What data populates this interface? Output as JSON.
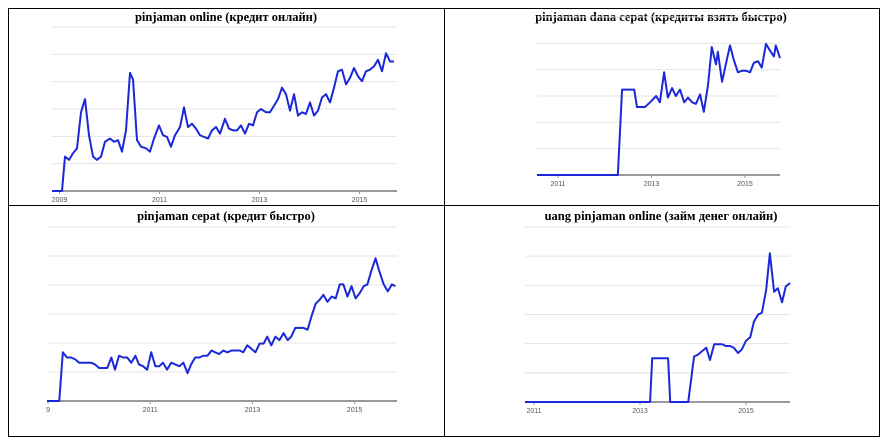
{
  "chart_data": [
    {
      "type": "line",
      "title": "pinjaman online (кредит онлайн)",
      "color": "#1a28d8",
      "grid": true,
      "xlim": [
        2008.85,
        2015.75
      ],
      "xticks": [
        2009,
        2011,
        2013,
        2015
      ],
      "ylim": [
        0,
        100
      ],
      "x": [
        2008.85,
        2009.05,
        2009.11,
        2009.19,
        2009.27,
        2009.35,
        2009.43,
        2009.51,
        2009.59,
        2009.67,
        2009.75,
        2009.83,
        2009.91,
        2010.01,
        2010.09,
        2010.17,
        2010.25,
        2010.33,
        2010.41,
        2010.47,
        2010.55,
        2010.63,
        2010.73,
        2010.81,
        2010.89,
        2010.99,
        2011.07,
        2011.15,
        2011.23,
        2011.31,
        2011.41,
        2011.49,
        2011.57,
        2011.65,
        2011.73,
        2011.81,
        2011.89,
        2011.97,
        2012.05,
        2012.13,
        2012.21,
        2012.31,
        2012.39,
        2012.47,
        2012.55,
        2012.63,
        2012.71,
        2012.79,
        2012.87,
        2012.95,
        2013.03,
        2013.13,
        2013.21,
        2013.29,
        2013.37,
        2013.45,
        2013.53,
        2013.61,
        2013.69,
        2013.77,
        2013.85,
        2013.93,
        2014.01,
        2014.09,
        2014.17,
        2014.25,
        2014.33,
        2014.41,
        2014.49,
        2014.57,
        2014.65,
        2014.73,
        2014.81,
        2014.89,
        2014.97,
        2015.05,
        2015.13,
        2015.21,
        2015.29,
        2015.37,
        2015.45,
        2015.53,
        2015.61,
        2015.69
      ],
      "values": [
        0,
        0,
        21,
        19,
        23,
        26,
        48,
        56,
        34,
        21,
        19,
        21,
        30,
        32,
        30,
        31,
        24,
        37,
        72,
        68,
        31,
        27,
        26,
        24,
        32,
        40,
        34,
        33,
        27,
        34,
        39,
        51,
        39,
        41,
        38,
        34,
        33,
        32,
        37,
        39,
        35,
        44,
        38,
        37,
        37,
        40,
        35,
        41,
        40,
        48,
        50,
        48,
        48,
        52,
        56,
        63,
        59,
        49,
        59,
        46,
        48,
        47,
        54,
        46,
        49,
        57,
        59,
        54,
        63,
        73,
        74,
        65,
        69,
        75,
        70,
        67,
        73,
        74,
        76,
        80,
        73,
        84,
        79,
        79
      ]
    },
    {
      "type": "line",
      "title": "pinjaman dana cepat (кредиты взять быстро)",
      "color": "#1a28d8",
      "grid": true,
      "xlim": [
        2010.55,
        2015.75
      ],
      "xticks": [
        2011,
        2013,
        2015
      ],
      "ylim": [
        0,
        100
      ],
      "x": [
        2010.55,
        2012.28,
        2012.37,
        2012.63,
        2012.69,
        2012.86,
        2012.97,
        2013.1,
        2013.18,
        2013.27,
        2013.35,
        2013.44,
        2013.52,
        2013.61,
        2013.7,
        2013.78,
        2013.87,
        2013.95,
        2014.04,
        2014.12,
        2014.21,
        2014.29,
        2014.38,
        2014.42,
        2014.51,
        2014.59,
        2014.68,
        2014.76,
        2014.85,
        2014.94,
        2015.02,
        2015.11,
        2015.19,
        2015.28,
        2015.36,
        2015.45,
        2015.53,
        2015.62,
        2015.66,
        2015.75
      ],
      "values": [
        0,
        0,
        54,
        54,
        43,
        43,
        46,
        50,
        46,
        65,
        49,
        55,
        50,
        54,
        46,
        49,
        46,
        45,
        51,
        40,
        57,
        81,
        70,
        78,
        59,
        70,
        82,
        73,
        65,
        66,
        66,
        65,
        71,
        72,
        68,
        83,
        79,
        75,
        82,
        74
      ]
    },
    {
      "type": "line",
      "title": "pinjaman cepat (кредит быстро)",
      "color": "#1a28d8",
      "grid": true,
      "xlim": [
        2008.98,
        2015.83
      ],
      "xticks": [
        {
          "value": 2009,
          "label": "9"
        },
        2011,
        2013,
        2015
      ],
      "ylim": [
        0,
        100
      ],
      "x": [
        2008.98,
        2009.22,
        2009.29,
        2009.37,
        2009.45,
        2009.53,
        2009.61,
        2009.69,
        2009.76,
        2009.84,
        2009.92,
        2010.0,
        2010.08,
        2010.16,
        2010.24,
        2010.31,
        2010.39,
        2010.47,
        2010.55,
        2010.63,
        2010.71,
        2010.78,
        2010.86,
        2010.94,
        2011.02,
        2011.1,
        2011.18,
        2011.25,
        2011.33,
        2011.41,
        2011.49,
        2011.57,
        2011.65,
        2011.73,
        2011.8,
        2011.88,
        2011.96,
        2012.04,
        2012.12,
        2012.2,
        2012.27,
        2012.35,
        2012.43,
        2012.51,
        2012.59,
        2012.67,
        2012.75,
        2012.82,
        2012.9,
        2012.98,
        2013.06,
        2013.14,
        2013.22,
        2013.29,
        2013.37,
        2013.45,
        2013.53,
        2013.61,
        2013.69,
        2013.76,
        2013.84,
        2013.92,
        2014.0,
        2014.08,
        2014.16,
        2014.24,
        2014.31,
        2014.39,
        2014.47,
        2014.55,
        2014.63,
        2014.71,
        2014.78,
        2014.86,
        2014.94,
        2015.02,
        2015.1,
        2015.18,
        2015.25,
        2015.33,
        2015.41,
        2015.49,
        2015.57,
        2015.65,
        2015.73,
        2015.8
      ],
      "values": [
        0,
        0,
        28,
        25,
        25,
        24,
        22,
        22,
        22,
        22,
        21,
        19,
        19,
        19,
        25,
        18,
        26,
        25,
        25,
        22,
        26,
        21,
        20,
        18,
        28,
        20,
        20,
        22,
        18,
        22,
        21,
        20,
        22,
        16,
        21,
        25,
        25,
        26,
        26,
        29,
        28,
        27,
        29,
        28,
        29,
        29,
        29,
        28,
        32,
        30,
        28,
        33,
        33,
        37,
        32,
        37,
        35,
        39,
        35,
        37,
        42,
        42,
        42,
        41,
        49,
        56,
        58,
        61,
        57,
        60,
        59,
        67,
        67,
        60,
        66,
        59,
        62,
        66,
        67,
        75,
        82,
        74,
        67,
        63,
        67,
        66
      ]
    },
    {
      "type": "line",
      "title": "uang pinjaman online (займ денег онлайн)",
      "color": "#1a28d8",
      "grid": true,
      "xlim": [
        2010.83,
        2015.83
      ],
      "xticks": [
        2011,
        2013,
        2015
      ],
      "ylim": [
        0,
        100
      ],
      "x": [
        2010.83,
        2013.19,
        2013.23,
        2013.53,
        2013.57,
        2013.91,
        2014.02,
        2014.09,
        2014.17,
        2014.25,
        2014.32,
        2014.4,
        2014.47,
        2014.55,
        2014.62,
        2014.7,
        2014.77,
        2014.85,
        2014.92,
        2015.0,
        2015.08,
        2015.15,
        2015.23,
        2015.3,
        2015.38,
        2015.45,
        2015.53,
        2015.6,
        2015.68,
        2015.75,
        2015.83
      ],
      "values": [
        0,
        0,
        25,
        25,
        0,
        0,
        26,
        27,
        29,
        31,
        24,
        33,
        33,
        33,
        32,
        32,
        31,
        28,
        30,
        35,
        37,
        46,
        50,
        51,
        64,
        85,
        63,
        65,
        57,
        66,
        68
      ]
    }
  ]
}
